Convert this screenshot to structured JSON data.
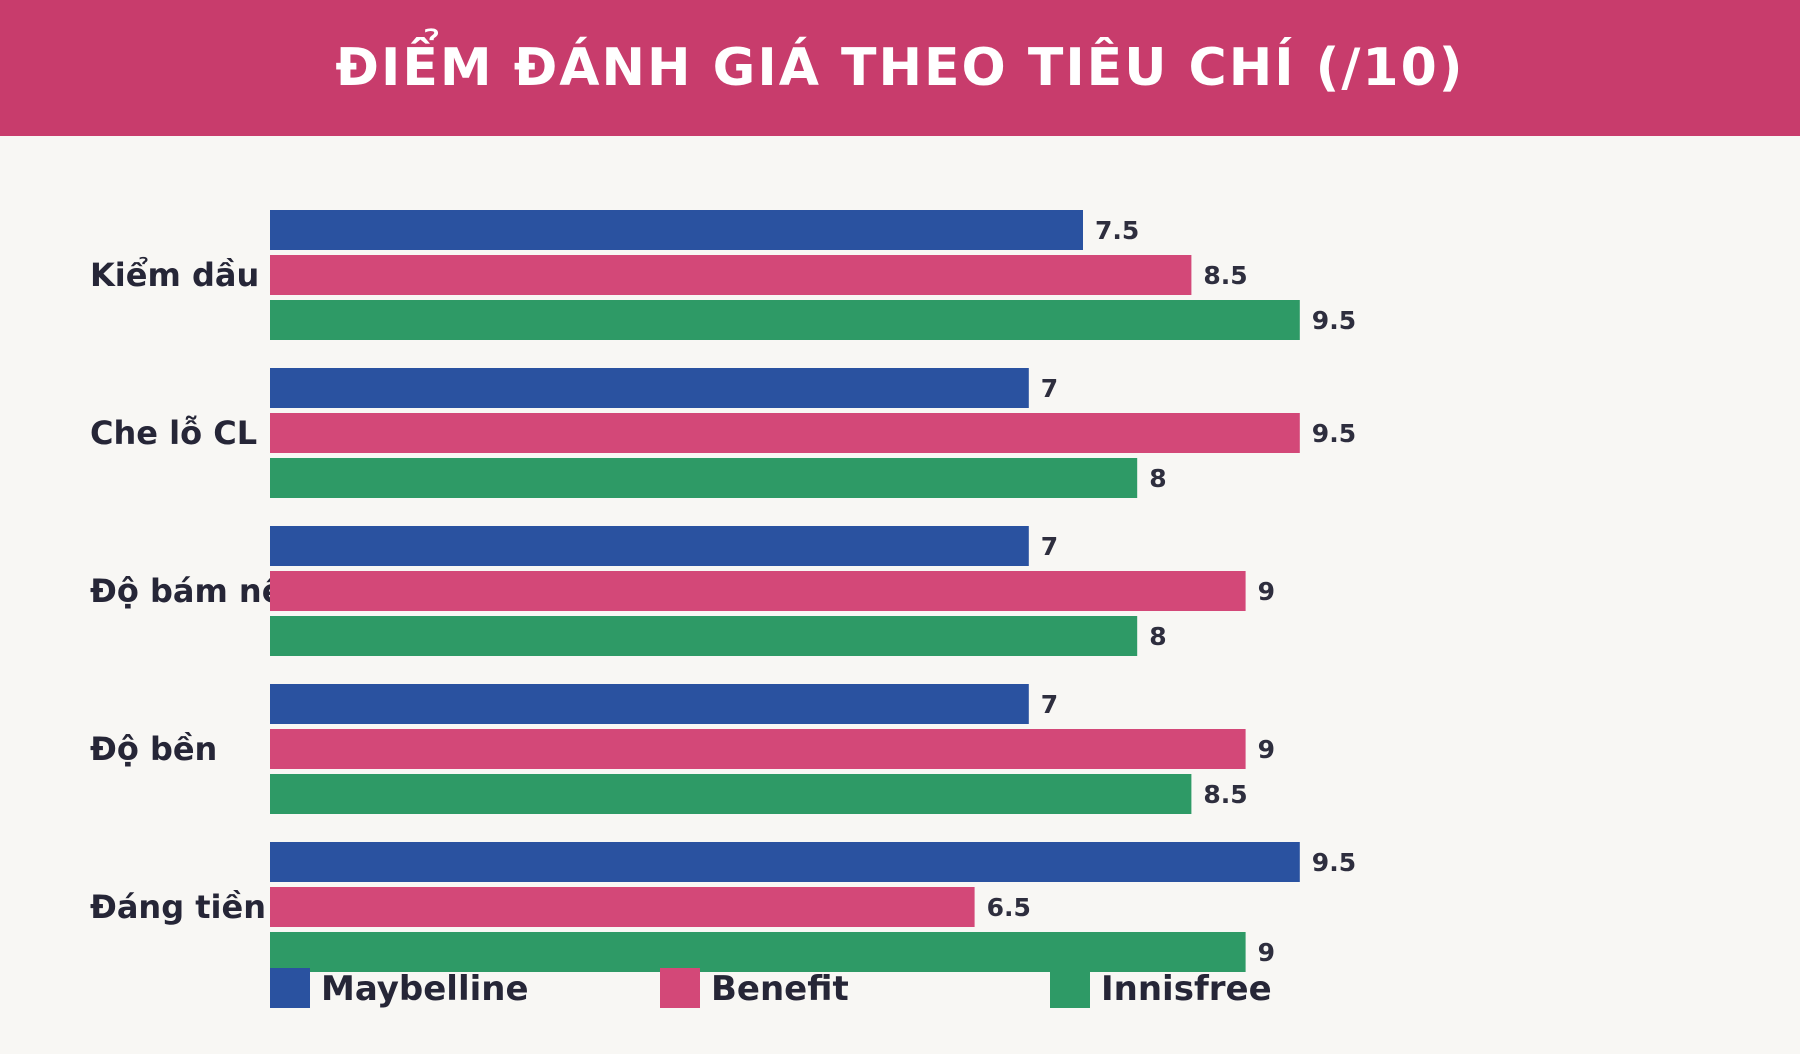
{
  "header": {
    "title": "ĐIỂM ĐÁNH GIÁ THEO TIÊU CHÍ (/10)"
  },
  "colors": {
    "header_bg": "#c83c6c",
    "background": "#f8f7f4",
    "maybelline": "#2a52a0",
    "benefit": "#d34878",
    "innisfree": "#2e9a66"
  },
  "chart_data": {
    "type": "bar",
    "orientation": "horizontal",
    "title": "ĐIỂM ĐÁNH GIÁ THEO TIÊU CHÍ (/10)",
    "xlabel": "",
    "ylabel": "",
    "xlim": [
      0,
      10
    ],
    "grid": false,
    "legend_position": "bottom",
    "categories": [
      "Kiểm dầu",
      "Che lỗ CL",
      "Độ bám nền",
      "Độ bền",
      "Đáng tiền"
    ],
    "series": [
      {
        "name": "Maybelline",
        "color": "#2a52a0",
        "values": [
          7.5,
          7,
          7,
          7,
          9.5
        ]
      },
      {
        "name": "Benefit",
        "color": "#d34878",
        "values": [
          8.5,
          9.5,
          9,
          9,
          6.5
        ]
      },
      {
        "name": "Innisfree",
        "color": "#2e9a66",
        "values": [
          9.5,
          8,
          8,
          8.5,
          9
        ]
      }
    ]
  }
}
